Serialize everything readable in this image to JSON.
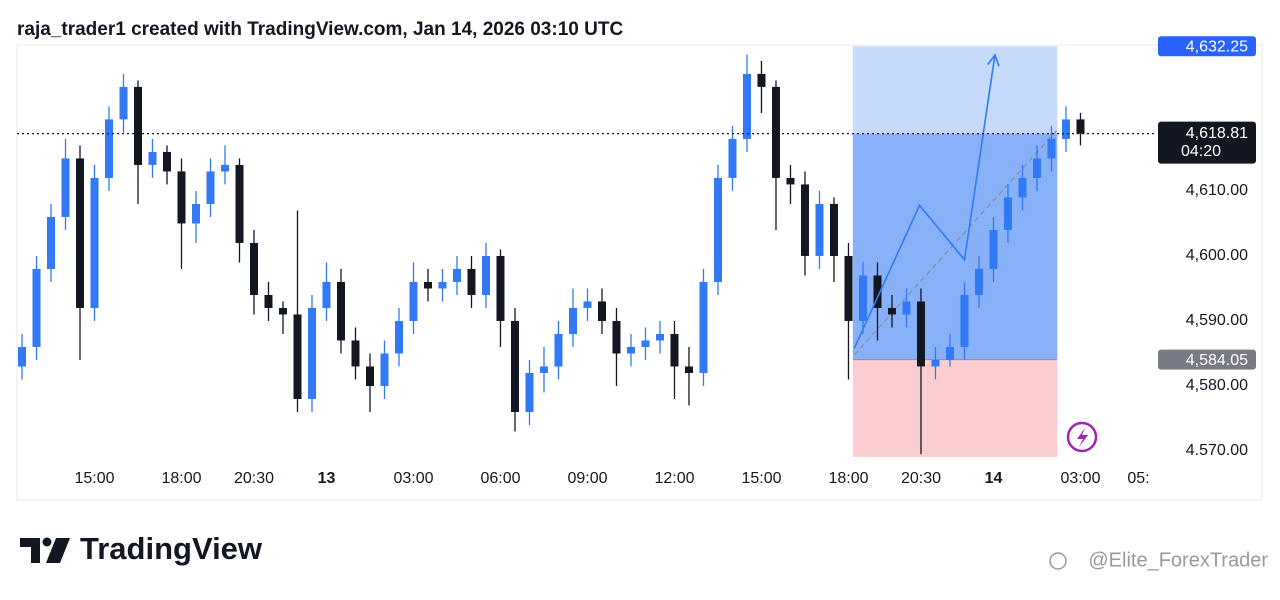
{
  "header": {
    "title": "raja_trader1 created with TradingView.com, Jan 14, 2026 03:10 UTC"
  },
  "chart_data": {
    "type": "candlestick",
    "up_color": "#3179f5",
    "down_color": "#131722",
    "open": [
      4583,
      4586,
      4598,
      4606,
      4615,
      4592,
      4612,
      4621,
      4626,
      4614,
      4616,
      4613,
      4605,
      4608,
      4613,
      4614,
      4602,
      4594,
      4592,
      4591,
      4578,
      4592,
      4596,
      4587,
      4583,
      4580,
      4585,
      4590,
      4596,
      4595,
      4596,
      4598,
      4594,
      4600,
      4590,
      4576,
      4582,
      4583,
      4588,
      4592,
      4593,
      4590,
      4585,
      4586,
      4587,
      4588,
      4583,
      4582,
      4596,
      4612,
      4618,
      4628,
      4626,
      4612,
      4611,
      4600,
      4608,
      4600,
      4590,
      4597,
      4592,
      4591,
      4593,
      4583,
      4584,
      4586,
      4594,
      4598,
      4604,
      4609,
      4612,
      4615,
      4618,
      4621
    ],
    "high": [
      4588,
      4600,
      4608,
      4618,
      4617,
      4614,
      4623,
      4628,
      4627,
      4618,
      4617,
      4615,
      4610,
      4615,
      4617,
      4615,
      4604,
      4596,
      4593,
      4607,
      4594,
      4599,
      4598,
      4589,
      4585,
      4587,
      4592,
      4599,
      4598,
      4598,
      4600,
      4600,
      4602,
      4601,
      4592,
      4584,
      4586,
      4590,
      4595,
      4595,
      4595,
      4592,
      4588,
      4589,
      4590,
      4590,
      4586,
      4598,
      4614,
      4620,
      4631,
      4630,
      4627,
      4614,
      4613,
      4610,
      4609,
      4602,
      4599,
      4599,
      4594,
      4595,
      4595,
      4586,
      4588,
      4596,
      4600,
      4606,
      4611,
      4614,
      4617,
      4620,
      4623,
      4622
    ],
    "low": [
      4581,
      4584,
      4596,
      4604,
      4584,
      4590,
      4610,
      4619,
      4608,
      4612,
      4611,
      4598,
      4602,
      4606,
      4611,
      4599,
      4591,
      4590,
      4588,
      4576,
      4576,
      4590,
      4585,
      4581,
      4576,
      4578,
      4583,
      4588,
      4593,
      4593,
      4594,
      4592,
      4592,
      4586,
      4573,
      4574,
      4579,
      4581,
      4586,
      4590,
      4588,
      4580,
      4583,
      4584,
      4585,
      4578,
      4577,
      4580,
      4594,
      4610,
      4616,
      4622,
      4604,
      4608,
      4597,
      4598,
      4596,
      4581,
      4588,
      4587,
      4589,
      4589,
      4569.5,
      4581,
      4583,
      4584,
      4592,
      4596,
      4602,
      4607,
      4610,
      4613,
      4616,
      4617
    ],
    "close": [
      4586,
      4598,
      4606,
      4615,
      4592,
      4612,
      4621,
      4626,
      4614,
      4616,
      4613,
      4605,
      4608,
      4613,
      4614,
      4602,
      4594,
      4592,
      4591,
      4578,
      4592,
      4596,
      4587,
      4583,
      4580,
      4585,
      4590,
      4596,
      4595,
      4596,
      4598,
      4594,
      4600,
      4590,
      4576,
      4582,
      4583,
      4588,
      4592,
      4593,
      4590,
      4585,
      4586,
      4587,
      4588,
      4583,
      4582,
      4596,
      4612,
      4618,
      4628,
      4626,
      4612,
      4611,
      4600,
      4608,
      4600,
      4590,
      4597,
      4592,
      4591,
      4593,
      4583,
      4584,
      4586,
      4594,
      4598,
      4604,
      4609,
      4612,
      4615,
      4618,
      4621,
      4618.81
    ],
    "xlim": [
      -0.345,
      78.14
    ],
    "ylim": [
      4569,
      4632.6
    ],
    "xticks": [
      {
        "value": 5,
        "label": "15:00"
      },
      {
        "value": 11,
        "label": "18:00"
      },
      {
        "value": 16,
        "label": "20:30"
      },
      {
        "value": 21,
        "label": "13"
      },
      {
        "value": 27,
        "label": "03:00"
      },
      {
        "value": 33,
        "label": "06:00"
      },
      {
        "value": 39,
        "label": "09:00"
      },
      {
        "value": 45,
        "label": "12:00"
      },
      {
        "value": 51,
        "label": "15:00"
      },
      {
        "value": 57,
        "label": "18:00"
      },
      {
        "value": 62,
        "label": "20:30"
      },
      {
        "value": 67,
        "label": "14"
      },
      {
        "value": 73,
        "label": "03:00"
      },
      {
        "value": 77,
        "label": "05:"
      }
    ],
    "yticks": [
      {
        "value": 4570,
        "label": "4.570.00"
      },
      {
        "value": 4580,
        "label": "4,580.00"
      },
      {
        "value": 4590,
        "label": "4,590.00"
      },
      {
        "value": 4600,
        "label": "4,600.00"
      },
      {
        "value": 4610,
        "label": "4,610.00"
      }
    ],
    "last_price": {
      "value": 4618.81,
      "label": "4,618.81",
      "countdown": "04:20"
    },
    "position": {
      "type": "long",
      "entry": 4584.05,
      "entry_label": "4,584.05",
      "target": 4632.25,
      "target_label": "4,632.25",
      "stop": 4569.1,
      "start": 57.3,
      "end": 71.4
    },
    "projection": {
      "x": [
        57.4,
        61.9,
        65.0,
        67.1
      ],
      "y": [
        4585.8,
        4607.8,
        4599.4,
        4630.9
      ]
    },
    "trend_line": {
      "x": [
        57.4,
        71.4
      ],
      "y": [
        4584.8,
        4619.4
      ]
    }
  },
  "footer": {
    "brand": "TradingView",
    "watermark": "@Elite_ForexTrader"
  }
}
